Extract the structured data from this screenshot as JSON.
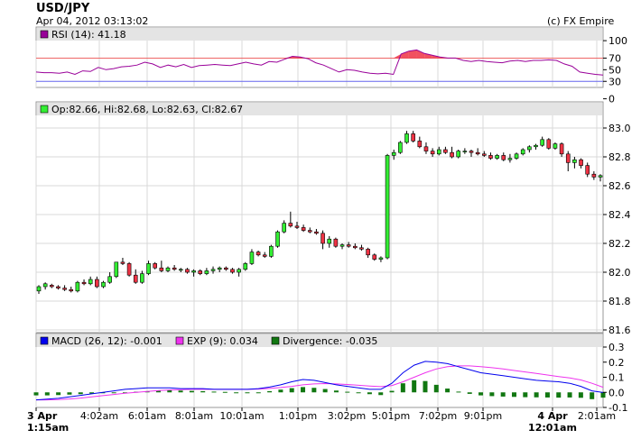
{
  "header": {
    "symbol": "USD/JPY",
    "datetime": "Apr 04, 2012 03:13:02",
    "copyright": "(c) FX Empire"
  },
  "colors": {
    "up": "#33ee33",
    "down": "#ee3344",
    "rsi_line": "#990099",
    "macd_line": "#0000ee",
    "exp_line": "#ee33ee",
    "divergence": "#117711",
    "rsi_overbought_line": "#ee6666",
    "rsi_oversold_line": "#6666ee",
    "panel_header": "#e4e4e4"
  },
  "chart_data": [
    {
      "type": "line",
      "panel": "rsi",
      "legend": "RSI (14): 41.18",
      "ylim": [
        0,
        110
      ],
      "ticks": [
        0,
        30,
        50,
        70,
        100
      ],
      "tick_labels": [
        "0",
        "30",
        "50",
        "70",
        "100"
      ],
      "levels": [
        70,
        30
      ],
      "values": [
        46,
        45,
        45,
        44,
        46,
        42,
        48,
        47,
        54,
        50,
        52,
        55,
        56,
        58,
        63,
        60,
        54,
        58,
        55,
        59,
        54,
        57,
        58,
        59,
        58,
        57,
        60,
        63,
        60,
        58,
        64,
        63,
        68,
        73,
        72,
        69,
        62,
        58,
        52,
        46,
        50,
        49,
        46,
        44,
        43,
        44,
        42,
        77,
        82,
        84,
        78,
        75,
        72,
        70,
        70,
        66,
        64,
        66,
        64,
        63,
        62,
        65,
        66,
        64,
        66,
        66,
        67,
        66,
        60,
        56,
        46,
        44,
        42,
        41
      ]
    },
    {
      "type": "candlestick",
      "panel": "price",
      "legend": "Op:82.66, Hi:82.68, Lo:82.63, Cl:82.67",
      "ylim": [
        81.6,
        83.0
      ],
      "ticks": [
        81.6,
        81.8,
        82.0,
        82.2,
        82.4,
        82.6,
        82.8,
        83.0
      ],
      "tick_labels": [
        "81.6",
        "81.8",
        "82.0",
        "82.2",
        "82.4",
        "82.6",
        "82.8",
        "83.0"
      ],
      "candles": [
        [
          81.87,
          81.91,
          81.85,
          81.9
        ],
        [
          81.9,
          81.93,
          81.88,
          81.92
        ],
        [
          81.91,
          81.92,
          81.89,
          81.9
        ],
        [
          81.9,
          81.91,
          81.88,
          81.89
        ],
        [
          81.89,
          81.91,
          81.87,
          81.88
        ],
        [
          81.88,
          81.9,
          81.86,
          81.87
        ],
        [
          81.87,
          81.94,
          81.86,
          81.93
        ],
        [
          81.93,
          81.95,
          81.91,
          81.92
        ],
        [
          81.92,
          81.97,
          81.91,
          81.95
        ],
        [
          81.95,
          81.97,
          81.89,
          81.9
        ],
        [
          81.9,
          81.94,
          81.89,
          81.93
        ],
        [
          81.93,
          82.0,
          81.92,
          81.97
        ],
        [
          81.97,
          82.07,
          81.96,
          82.07
        ],
        [
          82.07,
          82.1,
          82.05,
          82.06
        ],
        [
          82.06,
          82.07,
          81.97,
          81.98
        ],
        [
          81.98,
          82.02,
          81.92,
          81.93
        ],
        [
          81.93,
          82.01,
          81.92,
          81.99
        ],
        [
          81.99,
          82.08,
          81.98,
          82.06
        ],
        [
          82.06,
          82.07,
          82.02,
          82.03
        ],
        [
          82.03,
          82.08,
          82.0,
          82.01
        ],
        [
          82.01,
          82.04,
          82.0,
          82.03
        ],
        [
          82.03,
          82.05,
          82.01,
          82.02
        ],
        [
          82.02,
          82.03,
          82.0,
          82.02
        ],
        [
          82.02,
          82.03,
          81.99,
          82.0
        ],
        [
          82.0,
          82.02,
          81.97,
          82.01
        ],
        [
          82.01,
          82.02,
          81.98,
          81.99
        ],
        [
          81.99,
          82.03,
          81.98,
          82.01
        ],
        [
          82.01,
          82.04,
          81.99,
          82.02
        ],
        [
          82.02,
          82.04,
          82.0,
          82.03
        ],
        [
          82.03,
          82.04,
          82.01,
          82.02
        ],
        [
          82.02,
          82.03,
          81.99,
          82.0
        ],
        [
          82.0,
          82.03,
          81.97,
          82.02
        ],
        [
          82.02,
          82.07,
          82.01,
          82.06
        ],
        [
          82.06,
          82.16,
          82.05,
          82.14
        ],
        [
          82.14,
          82.15,
          82.11,
          82.12
        ],
        [
          82.12,
          82.14,
          82.1,
          82.11
        ],
        [
          82.11,
          82.19,
          82.1,
          82.18
        ],
        [
          82.18,
          82.29,
          82.17,
          82.28
        ],
        [
          82.28,
          82.36,
          82.27,
          82.34
        ],
        [
          82.34,
          82.42,
          82.31,
          82.32
        ],
        [
          82.32,
          82.35,
          82.3,
          82.31
        ],
        [
          82.31,
          82.33,
          82.28,
          82.29
        ],
        [
          82.29,
          82.31,
          82.27,
          82.28
        ],
        [
          82.28,
          82.3,
          82.26,
          82.27
        ],
        [
          82.27,
          82.29,
          82.16,
          82.2
        ],
        [
          82.2,
          82.25,
          82.17,
          82.23
        ],
        [
          82.23,
          82.24,
          82.17,
          82.18
        ],
        [
          82.18,
          82.2,
          82.16,
          82.19
        ],
        [
          82.19,
          82.21,
          82.17,
          82.18
        ],
        [
          82.18,
          82.2,
          82.16,
          82.17
        ],
        [
          82.17,
          82.19,
          82.15,
          82.16
        ],
        [
          82.16,
          82.17,
          82.1,
          82.12
        ],
        [
          82.12,
          82.13,
          82.08,
          82.09
        ],
        [
          82.09,
          82.11,
          82.07,
          82.1
        ],
        [
          82.1,
          82.82,
          82.09,
          82.81
        ],
        [
          82.81,
          82.85,
          82.78,
          82.83
        ],
        [
          82.83,
          82.91,
          82.82,
          82.9
        ],
        [
          82.9,
          82.98,
          82.89,
          82.96
        ],
        [
          82.96,
          82.98,
          82.9,
          82.91
        ],
        [
          82.91,
          82.94,
          82.86,
          82.87
        ],
        [
          82.87,
          82.9,
          82.82,
          82.84
        ],
        [
          82.84,
          82.86,
          82.8,
          82.82
        ],
        [
          82.82,
          82.87,
          82.81,
          82.85
        ],
        [
          82.85,
          82.87,
          82.82,
          82.83
        ],
        [
          82.83,
          82.87,
          82.79,
          82.8
        ],
        [
          82.8,
          82.85,
          82.79,
          82.84
        ],
        [
          82.84,
          82.86,
          82.82,
          82.84
        ],
        [
          82.84,
          82.85,
          82.8,
          82.83
        ],
        [
          82.83,
          82.86,
          82.81,
          82.82
        ],
        [
          82.82,
          82.84,
          82.8,
          82.81
        ],
        [
          82.81,
          82.83,
          82.78,
          82.79
        ],
        [
          82.79,
          82.82,
          82.78,
          82.81
        ],
        [
          82.81,
          82.83,
          82.77,
          82.78
        ],
        [
          82.78,
          82.82,
          82.76,
          82.79
        ],
        [
          82.79,
          82.83,
          82.78,
          82.82
        ],
        [
          82.82,
          82.86,
          82.81,
          82.85
        ],
        [
          82.85,
          82.88,
          82.83,
          82.87
        ],
        [
          82.87,
          82.89,
          82.85,
          82.88
        ],
        [
          82.88,
          82.94,
          82.87,
          82.92
        ],
        [
          82.92,
          82.93,
          82.85,
          82.86
        ],
        [
          82.86,
          82.9,
          82.85,
          82.89
        ],
        [
          82.89,
          82.9,
          82.8,
          82.82
        ],
        [
          82.82,
          82.84,
          82.7,
          82.76
        ],
        [
          82.76,
          82.8,
          82.72,
          82.78
        ],
        [
          82.78,
          82.79,
          82.72,
          82.74
        ],
        [
          82.74,
          82.76,
          82.66,
          82.68
        ],
        [
          82.68,
          82.7,
          82.64,
          82.66
        ],
        [
          82.66,
          82.68,
          82.63,
          82.67
        ]
      ]
    },
    {
      "type": "line",
      "panel": "macd",
      "legend": [
        {
          "name": "MACD (26, 12): -0.001",
          "kind": "line"
        },
        {
          "name": "EXP (9): 0.034",
          "kind": "line"
        },
        {
          "name": "Divergence: -0.035",
          "kind": "bar"
        }
      ],
      "ylim": [
        -0.1,
        0.3
      ],
      "ticks": [
        -0.1,
        0.0,
        0.1,
        0.2,
        0.3
      ],
      "tick_labels": [
        "-0.1",
        "0.0",
        "0.1",
        "0.2",
        "0.3"
      ],
      "macd": [
        -0.05,
        -0.045,
        -0.04,
        -0.03,
        -0.02,
        -0.01,
        0,
        0.01,
        0.02,
        0.025,
        0.03,
        0.03,
        0.03,
        0.025,
        0.025,
        0.025,
        0.02,
        0.02,
        0.02,
        0.02,
        0.025,
        0.035,
        0.05,
        0.07,
        0.085,
        0.08,
        0.065,
        0.05,
        0.04,
        0.03,
        0.02,
        0.02,
        0.06,
        0.13,
        0.18,
        0.205,
        0.2,
        0.19,
        0.17,
        0.15,
        0.13,
        0.12,
        0.11,
        0.1,
        0.09,
        0.08,
        0.075,
        0.07,
        0.06,
        0.04,
        0.01,
        -0.001
      ],
      "exp": [
        -0.05,
        -0.05,
        -0.048,
        -0.044,
        -0.038,
        -0.03,
        -0.022,
        -0.014,
        -0.006,
        0,
        0.006,
        0.012,
        0.016,
        0.018,
        0.02,
        0.02,
        0.02,
        0.02,
        0.02,
        0.02,
        0.022,
        0.026,
        0.032,
        0.04,
        0.05,
        0.056,
        0.058,
        0.056,
        0.052,
        0.047,
        0.042,
        0.038,
        0.045,
        0.07,
        0.1,
        0.13,
        0.155,
        0.17,
        0.175,
        0.175,
        0.17,
        0.163,
        0.155,
        0.145,
        0.135,
        0.125,
        0.115,
        0.105,
        0.095,
        0.082,
        0.06,
        0.034
      ],
      "divergence": [
        -0.02,
        -0.02,
        -0.018,
        -0.015,
        -0.012,
        -0.008,
        -0.005,
        -0.002,
        0,
        0.004,
        0.008,
        0.012,
        0.014,
        0.012,
        0.01,
        0.008,
        0.005,
        0.003,
        0,
        -0.002,
        0,
        0.008,
        0.018,
        0.028,
        0.035,
        0.03,
        0.022,
        0.012,
        0.004,
        -0.005,
        -0.012,
        -0.018,
        0.01,
        0.06,
        0.08,
        0.075,
        0.05,
        0.025,
        0.005,
        -0.01,
        -0.02,
        -0.025,
        -0.028,
        -0.03,
        -0.032,
        -0.033,
        -0.034,
        -0.035,
        -0.034,
        -0.036,
        -0.045,
        -0.035
      ]
    }
  ],
  "x_axis": {
    "labels": [
      "3 Apr\n1:15am",
      "4:02am",
      "6:01am",
      "8:01am",
      "10:01am",
      "1:01pm",
      "3:02pm",
      "5:01pm",
      "7:02pm",
      "9:01pm",
      "4 Apr\n12:01am",
      "2:01am"
    ],
    "bold": [
      true,
      false,
      false,
      false,
      false,
      false,
      false,
      false,
      false,
      false,
      true,
      false
    ]
  }
}
